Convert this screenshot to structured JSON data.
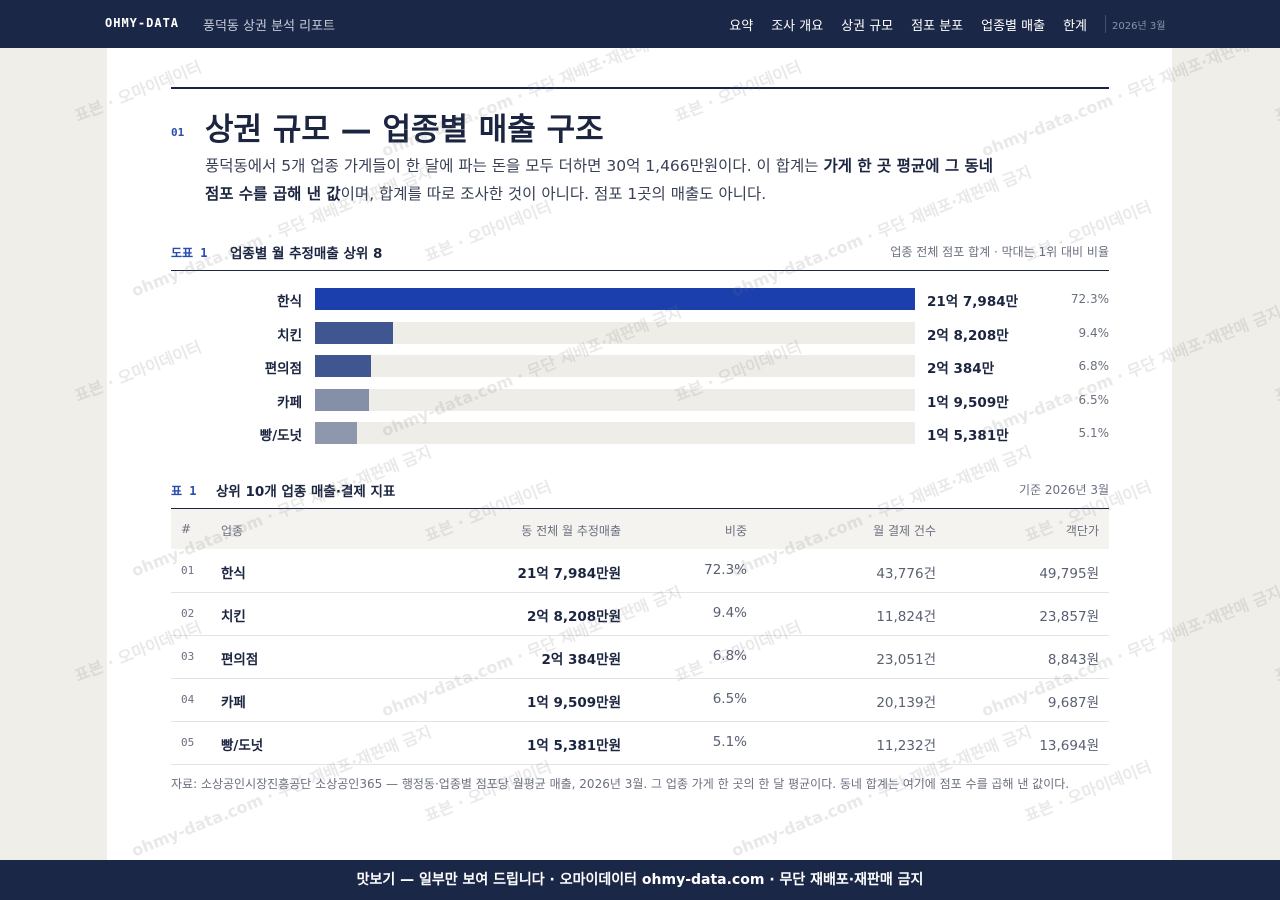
{
  "nav": {
    "brand": "OHMY-DATA",
    "subtitle": "풍덕동 상권 분석 리포트",
    "items": [
      "요약",
      "조사 개요",
      "상권 규모",
      "점포 분포",
      "업종별 매출",
      "한계"
    ],
    "date": "2026년 3월"
  },
  "section": {
    "number": "01",
    "title": "상권 규모 — 업종별 매출 구조",
    "intro": [
      "풍덕동에서 5개 업종 가게들이 한 달에 파는 돈을 모두 더하면 30억 1,466만원이다. 이 합계는 ",
      "가게 한 곳 평균에 그 동네 점포 수를 곱해 낸 값",
      "이며, 합계를 따로 조사한 것이 아니다. 점포 1곳의 매출도 아니다."
    ]
  },
  "figure": {
    "label": "도표 1",
    "title": "업종별 월 추정매출 상위 8",
    "note": "업종 전체 점포 합계 · 막대는 1위 대비 비율",
    "chart_data": {
      "type": "bar",
      "orientation": "horizontal",
      "categories": [
        "한식",
        "치킨",
        "편의점",
        "카페",
        "빵/도넛"
      ],
      "values": [
        217984,
        28208,
        20384,
        19509,
        15381
      ],
      "value_labels": [
        "21억 7,984만",
        "2억 8,208만",
        "2억 384만",
        "1억 9,509만",
        "1억 5,381만"
      ],
      "shares": [
        "72.3%",
        "9.4%",
        "6.8%",
        "6.5%",
        "5.1%"
      ],
      "colors": [
        "#1c3fae",
        "#3f5690",
        "#3f5690",
        "#858fa8",
        "#8e97ac"
      ],
      "track_color": "#efede7"
    }
  },
  "table": {
    "label": "표 1",
    "title": "상위 10개 업종 매출·결제 지표",
    "note": "기준 2026년 3월",
    "header": [
      "#",
      "업종",
      "동 전체 월 추정매출",
      "비중",
      "월 결제 건수",
      "객단가"
    ],
    "rows": [
      [
        "01",
        "한식",
        "21억 7,984만원",
        "72.3%",
        "43,776건",
        "49,795원"
      ],
      [
        "02",
        "치킨",
        "2억 8,208만원",
        "9.4%",
        "11,824건",
        "23,857원"
      ],
      [
        "03",
        "편의점",
        "2억 384만원",
        "6.8%",
        "23,051건",
        "8,843원"
      ],
      [
        "04",
        "카페",
        "1억 9,509만원",
        "6.5%",
        "20,139건",
        "9,687원"
      ],
      [
        "05",
        "빵/도넛",
        "1억 5,381만원",
        "5.1%",
        "11,232건",
        "13,694원"
      ]
    ],
    "source": "자료: 소상공인시장진흥공단 소상공인365 — 행정동·업종별 점포당 월평균 매출, 2026년 3월. 그 업종 가게 한 곳의 한 달 평균이다. 동네 합계는 여기에 점포 수를 곱해 낸 값이다."
  },
  "footer": "맛보기 — 일부만 보여 드립니다 · 오마이데이터 ohmy-data.com · 무단 재배포·재판매 금지",
  "watermark": [
    "표본 · 오마이데이터",
    "ohmy-data.com · 무단 재배포·재판매 금지"
  ]
}
